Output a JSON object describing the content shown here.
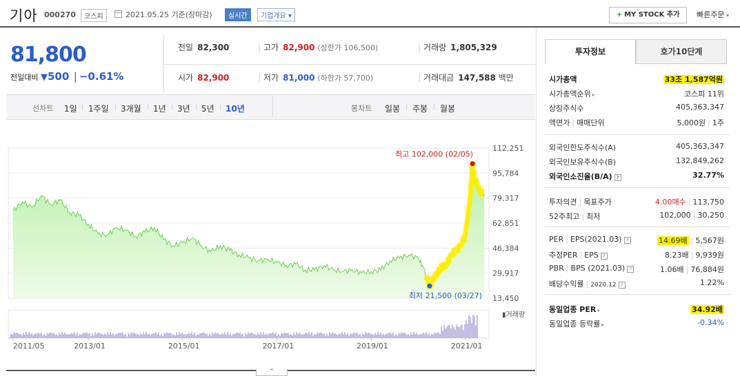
{
  "header": {
    "name": "기아",
    "code": "000270",
    "market": "코스피",
    "date": "2021.05.25 기준(장마감)",
    "realtime": "실시간",
    "company_info": "기업개요",
    "mystock": "MY STOCK 추가",
    "quick_order": "빠른주문"
  },
  "price": {
    "current": "81,800",
    "diff_label": "전일대비",
    "diff": "500",
    "rate": "−0.61%"
  },
  "quote": {
    "prev_label": "전일",
    "prev": "82,300",
    "high_label": "고가",
    "high": "82,900",
    "upper_limit": "(상한가 106,500)",
    "volume_label": "거래량",
    "volume": "1,805,329",
    "open_label": "시가",
    "open": "82,900",
    "low_label": "저가",
    "low": "81,000",
    "lower_limit": "(하한가 57,700)",
    "amount_label": "거래대금",
    "amount": "147,588",
    "amount_unit": "백만"
  },
  "chart_tabs": {
    "line_label": "선차트",
    "periods": [
      "1일",
      "1주일",
      "3개월",
      "1년",
      "3년",
      "5년",
      "10년"
    ],
    "active_period": "10년",
    "candle_label": "봉차트",
    "candles": [
      "일봉",
      "주봉",
      "월봉"
    ]
  },
  "chart_data": {
    "type": "area",
    "y_ticks": [
      "112,251",
      "95,784",
      "79,317",
      "62,851",
      "46,384",
      "29,917",
      "13,450"
    ],
    "ylim": [
      13450,
      112251
    ],
    "x_ticks": [
      "2011/05",
      "2013/01",
      "2015/01",
      "2017/01",
      "2019/01",
      "2021/01"
    ],
    "max_annotation": "최고 102,000 (02/05)",
    "min_annotation": "최저 21,500 (03/27)",
    "volume_label": "거래량",
    "x": [
      2011.4,
      2011.6,
      2011.8,
      2012.0,
      2012.2,
      2012.4,
      2012.6,
      2012.8,
      2013.0,
      2013.2,
      2013.4,
      2013.6,
      2013.8,
      2014.0,
      2014.2,
      2014.4,
      2014.6,
      2014.8,
      2015.0,
      2015.2,
      2015.4,
      2015.6,
      2015.8,
      2016.0,
      2016.2,
      2016.4,
      2016.6,
      2016.8,
      2017.0,
      2017.2,
      2017.4,
      2017.6,
      2017.8,
      2018.0,
      2018.2,
      2018.4,
      2018.6,
      2018.8,
      2019.0,
      2019.2,
      2019.4,
      2019.6,
      2019.8,
      2020.0,
      2020.1,
      2020.24,
      2020.3,
      2020.4,
      2020.5,
      2020.6,
      2020.7,
      2020.8,
      2020.9,
      2021.0,
      2021.1,
      2021.15,
      2021.2,
      2021.3,
      2021.4
    ],
    "values": [
      71000,
      77000,
      73000,
      81000,
      75000,
      78000,
      70000,
      68000,
      62000,
      56000,
      55000,
      60000,
      58000,
      54000,
      57000,
      60000,
      52000,
      48000,
      50000,
      53000,
      48000,
      44000,
      48000,
      45000,
      42000,
      40000,
      38000,
      39000,
      37000,
      35000,
      36000,
      32000,
      32000,
      35000,
      32000,
      31000,
      32000,
      30000,
      31000,
      32000,
      38000,
      40000,
      42000,
      40000,
      34000,
      21500,
      25000,
      30000,
      34000,
      36000,
      42000,
      45000,
      48000,
      55000,
      80000,
      102000,
      92000,
      84000,
      81800
    ]
  },
  "right_panel": {
    "tabs": [
      "투자정보",
      "호가10단계"
    ],
    "market_cap_label": "시가총액",
    "market_cap": "33조 1,587억원",
    "market_cap_rank_label": "시가총액순위",
    "market_cap_rank": "코스피 11위",
    "shares_label": "상장주식수",
    "shares": "405,363,347",
    "par_label": "액면가",
    "unit_label": "매매단위",
    "par": "5,000원",
    "unit": "1주",
    "foreign_limit_label": "외국인한도주식수(A)",
    "foreign_limit": "405,363,347",
    "foreign_hold_label": "외국인보유주식수(B)",
    "foreign_hold": "132,849,262",
    "foreign_ratio_label": "외국인소진율(B/A)",
    "foreign_ratio": "32.77%",
    "opinion_label": "투자의견",
    "target_label": "목표주가",
    "opinion": "4.00매수",
    "target": "113,750",
    "w52_high_label": "52주최고",
    "w52_low_label": "최저",
    "w52_high": "102,000",
    "w52_low": "30,250",
    "per_label": "PER",
    "eps_label": "EPS(2021.03)",
    "per": "14.69배",
    "eps": "5,567원",
    "est_per_label": "추정PER",
    "est_eps_label": "EPS",
    "est_per": "8.23배",
    "est_eps": "9,939원",
    "pbr_label": "PBR",
    "bps_label": "BPS (2021.03)",
    "pbr": "1.06배",
    "bps": "76,884원",
    "div_label": "배당수익률",
    "div_date": "2020.12",
    "div": "1.22%",
    "industry_per_label": "동일업종 PER",
    "industry_per": "34.92배",
    "industry_rate_label": "동일업종 등락률",
    "industry_rate": "-0.34%"
  }
}
